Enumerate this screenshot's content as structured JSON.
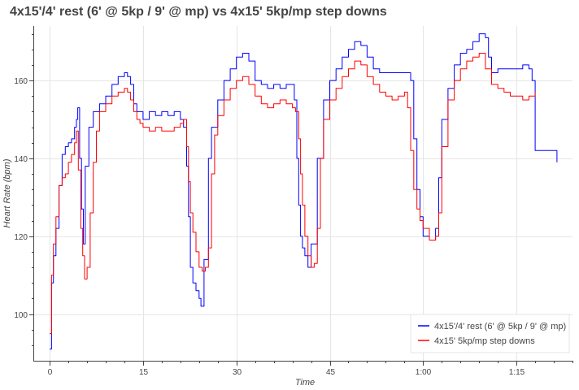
{
  "chart_data": {
    "type": "line",
    "title": "4x15'/4' rest (6' @ 5kp / 9' @ mp) vs 4x15' 5kp/mp step downs",
    "xlabel": "Time",
    "ylabel": "Heart Rate (bpm)",
    "x_unit": "minutes",
    "xlim": [
      -2.5,
      84
    ],
    "ylim": [
      88,
      174
    ],
    "x_ticks": [
      {
        "value": 0,
        "label": "0"
      },
      {
        "value": 15,
        "label": "15"
      },
      {
        "value": 30,
        "label": "30"
      },
      {
        "value": 45,
        "label": "45"
      },
      {
        "value": 60,
        "label": "1:00"
      },
      {
        "value": 75,
        "label": "1:15"
      }
    ],
    "y_ticks": [
      {
        "value": 100,
        "label": "100"
      },
      {
        "value": 120,
        "label": "120"
      },
      {
        "value": 140,
        "label": "140"
      },
      {
        "value": 160,
        "label": "160"
      }
    ],
    "grid": true,
    "legend_position": "bottom-right",
    "series": [
      {
        "name": "4x15'/4' rest (6' @ 5kp / 9' @ mp)",
        "color": "#0000ff",
        "points": [
          [
            0,
            91
          ],
          [
            0.3,
            108
          ],
          [
            0.6,
            115
          ],
          [
            1,
            122
          ],
          [
            1.5,
            133
          ],
          [
            2,
            141
          ],
          [
            2.5,
            143
          ],
          [
            3,
            144
          ],
          [
            3.5,
            145
          ],
          [
            4,
            148
          ],
          [
            4.3,
            150
          ],
          [
            4.5,
            153
          ],
          [
            4.8,
            140
          ],
          [
            5.1,
            127
          ],
          [
            5.4,
            118
          ],
          [
            5.7,
            138
          ],
          [
            6.3,
            148
          ],
          [
            7,
            152
          ],
          [
            8,
            154
          ],
          [
            9,
            156
          ],
          [
            10,
            159
          ],
          [
            11,
            161
          ],
          [
            12,
            162
          ],
          [
            12.5,
            161
          ],
          [
            13,
            159
          ],
          [
            13.5,
            154
          ],
          [
            14,
            152
          ],
          [
            15,
            150
          ],
          [
            16,
            152
          ],
          [
            17,
            151
          ],
          [
            18,
            152
          ],
          [
            19,
            151
          ],
          [
            20,
            152
          ],
          [
            21,
            150
          ],
          [
            21.5,
            148
          ],
          [
            22,
            138
          ],
          [
            22.3,
            125
          ],
          [
            22.6,
            112
          ],
          [
            23,
            108
          ],
          [
            23.5,
            106
          ],
          [
            24,
            104
          ],
          [
            24.3,
            102
          ],
          [
            24.8,
            114
          ],
          [
            25.5,
            140
          ],
          [
            26,
            148
          ],
          [
            27,
            155
          ],
          [
            28,
            160
          ],
          [
            29,
            163
          ],
          [
            30,
            166
          ],
          [
            31,
            167
          ],
          [
            32,
            165
          ],
          [
            33,
            160
          ],
          [
            34,
            159
          ],
          [
            35,
            158
          ],
          [
            36,
            159
          ],
          [
            37,
            158
          ],
          [
            38,
            159
          ],
          [
            39,
            159
          ],
          [
            39.3,
            155
          ],
          [
            39.7,
            140
          ],
          [
            40,
            128
          ],
          [
            40.3,
            120
          ],
          [
            40.6,
            117
          ],
          [
            41,
            115
          ],
          [
            41.5,
            112
          ],
          [
            42,
            118
          ],
          [
            43,
            140
          ],
          [
            44,
            155
          ],
          [
            45,
            160
          ],
          [
            46,
            163
          ],
          [
            47,
            166
          ],
          [
            48,
            168
          ],
          [
            49,
            170
          ],
          [
            50,
            169
          ],
          [
            51,
            166
          ],
          [
            52,
            163
          ],
          [
            53,
            162
          ],
          [
            54,
            162
          ],
          [
            55,
            162
          ],
          [
            56,
            162
          ],
          [
            57,
            162
          ],
          [
            58,
            160
          ],
          [
            58.5,
            145
          ],
          [
            59,
            132
          ],
          [
            59.5,
            125
          ],
          [
            60,
            120
          ],
          [
            61,
            119
          ],
          [
            62,
            122
          ],
          [
            62.5,
            135
          ],
          [
            63,
            150
          ],
          [
            64,
            158
          ],
          [
            65,
            164
          ],
          [
            66,
            167
          ],
          [
            67,
            168
          ],
          [
            68,
            170
          ],
          [
            69,
            172
          ],
          [
            70,
            171
          ],
          [
            70.5,
            166
          ],
          [
            71,
            162
          ],
          [
            72,
            163
          ],
          [
            73,
            163
          ],
          [
            74,
            163
          ],
          [
            75,
            163
          ],
          [
            76,
            164
          ],
          [
            77,
            163
          ],
          [
            77.5,
            160
          ],
          [
            78,
            142
          ],
          [
            81.5,
            139
          ]
        ]
      },
      {
        "name": "4x15' 5kp/mp step downs",
        "color": "#ff0000",
        "points": [
          [
            0,
            95
          ],
          [
            0.3,
            110
          ],
          [
            0.6,
            118
          ],
          [
            1,
            125
          ],
          [
            1.5,
            133
          ],
          [
            2,
            135
          ],
          [
            2.5,
            136
          ],
          [
            3,
            139
          ],
          [
            3.5,
            141
          ],
          [
            4,
            144
          ],
          [
            4.3,
            147
          ],
          [
            4.6,
            137
          ],
          [
            5,
            122
          ],
          [
            5.3,
            115
          ],
          [
            5.6,
            109
          ],
          [
            6,
            112
          ],
          [
            6.5,
            126
          ],
          [
            7,
            139
          ],
          [
            7.5,
            147
          ],
          [
            8,
            152
          ],
          [
            9,
            154
          ],
          [
            10,
            156
          ],
          [
            11,
            157
          ],
          [
            12,
            158
          ],
          [
            12.5,
            157
          ],
          [
            13,
            155
          ],
          [
            13.5,
            152
          ],
          [
            14,
            150
          ],
          [
            14.5,
            149
          ],
          [
            15,
            148
          ],
          [
            16,
            147
          ],
          [
            17,
            148
          ],
          [
            18,
            147
          ],
          [
            19,
            147
          ],
          [
            20,
            148
          ],
          [
            21,
            149
          ],
          [
            21.5,
            150
          ],
          [
            22,
            143
          ],
          [
            22.3,
            134
          ],
          [
            22.6,
            126
          ],
          [
            23,
            121
          ],
          [
            23.5,
            116
          ],
          [
            24,
            112
          ],
          [
            24.5,
            111
          ],
          [
            25,
            112
          ],
          [
            25.5,
            117
          ],
          [
            26,
            136
          ],
          [
            26.5,
            146
          ],
          [
            27,
            151
          ],
          [
            28,
            155
          ],
          [
            29,
            158
          ],
          [
            30,
            160
          ],
          [
            31,
            161
          ],
          [
            32,
            159
          ],
          [
            33,
            156
          ],
          [
            34,
            154
          ],
          [
            35,
            153
          ],
          [
            36,
            154
          ],
          [
            37,
            155
          ],
          [
            38,
            154
          ],
          [
            39,
            153
          ],
          [
            39.5,
            152
          ],
          [
            40,
            145
          ],
          [
            40.3,
            136
          ],
          [
            40.6,
            128
          ],
          [
            41,
            120
          ],
          [
            41.5,
            115
          ],
          [
            42,
            112
          ],
          [
            42.5,
            113
          ],
          [
            43,
            122
          ],
          [
            43.5,
            140
          ],
          [
            44,
            150
          ],
          [
            45,
            155
          ],
          [
            46,
            158
          ],
          [
            47,
            161
          ],
          [
            48,
            163
          ],
          [
            49,
            165
          ],
          [
            50,
            164
          ],
          [
            51,
            161
          ],
          [
            52,
            159
          ],
          [
            53,
            157
          ],
          [
            54,
            156
          ],
          [
            55,
            155
          ],
          [
            56,
            156
          ],
          [
            57,
            157
          ],
          [
            57.5,
            153
          ],
          [
            58,
            142
          ],
          [
            58.5,
            132
          ],
          [
            59,
            127
          ],
          [
            59.5,
            124
          ],
          [
            60,
            122
          ],
          [
            61,
            119
          ],
          [
            62,
            120
          ],
          [
            62.5,
            126
          ],
          [
            63,
            143
          ],
          [
            64,
            155
          ],
          [
            65,
            160
          ],
          [
            66,
            163
          ],
          [
            67,
            165
          ],
          [
            68,
            166
          ],
          [
            69,
            167
          ],
          [
            70,
            163
          ],
          [
            71,
            159
          ],
          [
            72,
            158
          ],
          [
            73,
            157
          ],
          [
            74,
            156
          ],
          [
            75,
            156
          ],
          [
            76,
            155
          ],
          [
            77,
            156
          ],
          [
            78,
            157
          ]
        ]
      }
    ]
  }
}
